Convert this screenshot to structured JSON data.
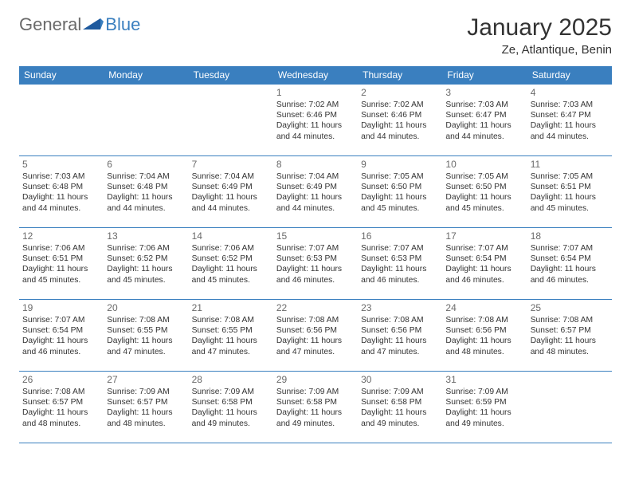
{
  "logo": {
    "text1": "General",
    "text2": "Blue"
  },
  "title": "January 2025",
  "location": "Ze, Atlantique, Benin",
  "colors": {
    "header_bg": "#3a7fbf",
    "header_text": "#ffffff",
    "border": "#3a7fbf",
    "daynum": "#6a6a6a",
    "body_text": "#333333",
    "bg": "#ffffff",
    "logo_gray": "#6a6a6a",
    "logo_blue": "#3a7fbf"
  },
  "fonts": {
    "title_size": 30,
    "location_size": 15,
    "dayhead_size": 12,
    "daynum_size": 12,
    "info_size": 10.3
  },
  "day_headers": [
    "Sunday",
    "Monday",
    "Tuesday",
    "Wednesday",
    "Thursday",
    "Friday",
    "Saturday"
  ],
  "weeks": [
    [
      null,
      null,
      null,
      {
        "n": "1",
        "sunrise": "7:02 AM",
        "sunset": "6:46 PM",
        "daylight": "11 hours and 44 minutes."
      },
      {
        "n": "2",
        "sunrise": "7:02 AM",
        "sunset": "6:46 PM",
        "daylight": "11 hours and 44 minutes."
      },
      {
        "n": "3",
        "sunrise": "7:03 AM",
        "sunset": "6:47 PM",
        "daylight": "11 hours and 44 minutes."
      },
      {
        "n": "4",
        "sunrise": "7:03 AM",
        "sunset": "6:47 PM",
        "daylight": "11 hours and 44 minutes."
      }
    ],
    [
      {
        "n": "5",
        "sunrise": "7:03 AM",
        "sunset": "6:48 PM",
        "daylight": "11 hours and 44 minutes."
      },
      {
        "n": "6",
        "sunrise": "7:04 AM",
        "sunset": "6:48 PM",
        "daylight": "11 hours and 44 minutes."
      },
      {
        "n": "7",
        "sunrise": "7:04 AM",
        "sunset": "6:49 PM",
        "daylight": "11 hours and 44 minutes."
      },
      {
        "n": "8",
        "sunrise": "7:04 AM",
        "sunset": "6:49 PM",
        "daylight": "11 hours and 44 minutes."
      },
      {
        "n": "9",
        "sunrise": "7:05 AM",
        "sunset": "6:50 PM",
        "daylight": "11 hours and 45 minutes."
      },
      {
        "n": "10",
        "sunrise": "7:05 AM",
        "sunset": "6:50 PM",
        "daylight": "11 hours and 45 minutes."
      },
      {
        "n": "11",
        "sunrise": "7:05 AM",
        "sunset": "6:51 PM",
        "daylight": "11 hours and 45 minutes."
      }
    ],
    [
      {
        "n": "12",
        "sunrise": "7:06 AM",
        "sunset": "6:51 PM",
        "daylight": "11 hours and 45 minutes."
      },
      {
        "n": "13",
        "sunrise": "7:06 AM",
        "sunset": "6:52 PM",
        "daylight": "11 hours and 45 minutes."
      },
      {
        "n": "14",
        "sunrise": "7:06 AM",
        "sunset": "6:52 PM",
        "daylight": "11 hours and 45 minutes."
      },
      {
        "n": "15",
        "sunrise": "7:07 AM",
        "sunset": "6:53 PM",
        "daylight": "11 hours and 46 minutes."
      },
      {
        "n": "16",
        "sunrise": "7:07 AM",
        "sunset": "6:53 PM",
        "daylight": "11 hours and 46 minutes."
      },
      {
        "n": "17",
        "sunrise": "7:07 AM",
        "sunset": "6:54 PM",
        "daylight": "11 hours and 46 minutes."
      },
      {
        "n": "18",
        "sunrise": "7:07 AM",
        "sunset": "6:54 PM",
        "daylight": "11 hours and 46 minutes."
      }
    ],
    [
      {
        "n": "19",
        "sunrise": "7:07 AM",
        "sunset": "6:54 PM",
        "daylight": "11 hours and 46 minutes."
      },
      {
        "n": "20",
        "sunrise": "7:08 AM",
        "sunset": "6:55 PM",
        "daylight": "11 hours and 47 minutes."
      },
      {
        "n": "21",
        "sunrise": "7:08 AM",
        "sunset": "6:55 PM",
        "daylight": "11 hours and 47 minutes."
      },
      {
        "n": "22",
        "sunrise": "7:08 AM",
        "sunset": "6:56 PM",
        "daylight": "11 hours and 47 minutes."
      },
      {
        "n": "23",
        "sunrise": "7:08 AM",
        "sunset": "6:56 PM",
        "daylight": "11 hours and 47 minutes."
      },
      {
        "n": "24",
        "sunrise": "7:08 AM",
        "sunset": "6:56 PM",
        "daylight": "11 hours and 48 minutes."
      },
      {
        "n": "25",
        "sunrise": "7:08 AM",
        "sunset": "6:57 PM",
        "daylight": "11 hours and 48 minutes."
      }
    ],
    [
      {
        "n": "26",
        "sunrise": "7:08 AM",
        "sunset": "6:57 PM",
        "daylight": "11 hours and 48 minutes."
      },
      {
        "n": "27",
        "sunrise": "7:09 AM",
        "sunset": "6:57 PM",
        "daylight": "11 hours and 48 minutes."
      },
      {
        "n": "28",
        "sunrise": "7:09 AM",
        "sunset": "6:58 PM",
        "daylight": "11 hours and 49 minutes."
      },
      {
        "n": "29",
        "sunrise": "7:09 AM",
        "sunset": "6:58 PM",
        "daylight": "11 hours and 49 minutes."
      },
      {
        "n": "30",
        "sunrise": "7:09 AM",
        "sunset": "6:58 PM",
        "daylight": "11 hours and 49 minutes."
      },
      {
        "n": "31",
        "sunrise": "7:09 AM",
        "sunset": "6:59 PM",
        "daylight": "11 hours and 49 minutes."
      },
      null
    ]
  ],
  "labels": {
    "sunrise": "Sunrise:",
    "sunset": "Sunset:",
    "daylight": "Daylight:"
  }
}
